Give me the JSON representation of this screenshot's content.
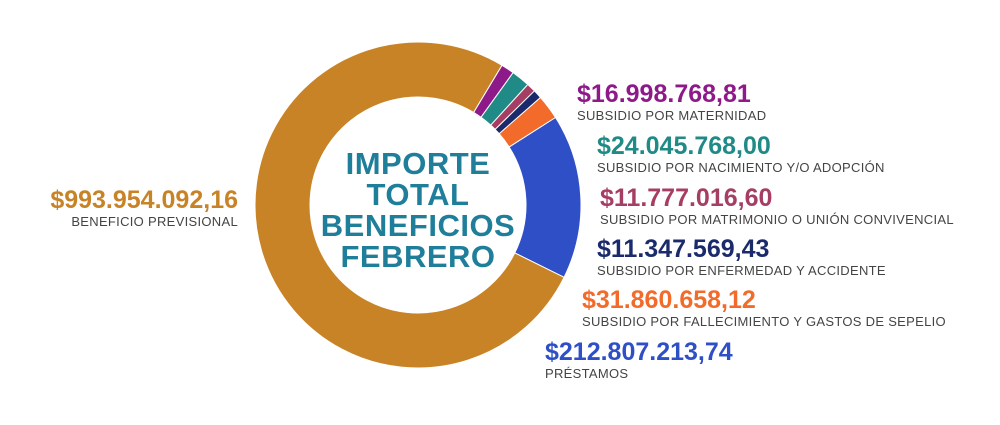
{
  "chart_data": {
    "type": "donut",
    "center_title": [
      "IMPORTE",
      "TOTAL",
      "BENEFICIOS",
      "FEBRERO"
    ],
    "slices": [
      {
        "label": "SUBSIDIO POR MATERNIDAD",
        "value_label": "$16.998.768,81",
        "value": 16998768.81,
        "color": "#8e1a8a"
      },
      {
        "label": "SUBSIDIO POR NACIMIENTO Y/O ADOPCIÓN",
        "value_label": "$24.045.768,00",
        "value": 24045768.0,
        "color": "#1f8a86"
      },
      {
        "label": "SUBSIDIO POR MATRIMONIO O UNIÓN CONVIVENCIAL",
        "value_label": "$11.777.016,60",
        "value": 11777016.6,
        "color": "#a63d63"
      },
      {
        "label": "SUBSIDIO POR ENFERMEDAD Y ACCIDENTE",
        "value_label": "$11.347.569,43",
        "value": 11347569.43,
        "color": "#1a2a6b"
      },
      {
        "label": "SUBSIDIO POR FALLECIMIENTO Y GASTOS DE SEPELIO",
        "value_label": "$31.860.658,12",
        "value": 31860658.12,
        "color": "#f26b2a"
      },
      {
        "label": "PRÉSTAMOS",
        "value_label": "$212.807.213,74",
        "value": 212807213.74,
        "color": "#2f4fc7"
      },
      {
        "label": "BENEFICIO PREVISIONAL",
        "value_label": "$993.954.092,16",
        "value": 993954092.16,
        "color": "#c98327"
      }
    ]
  }
}
